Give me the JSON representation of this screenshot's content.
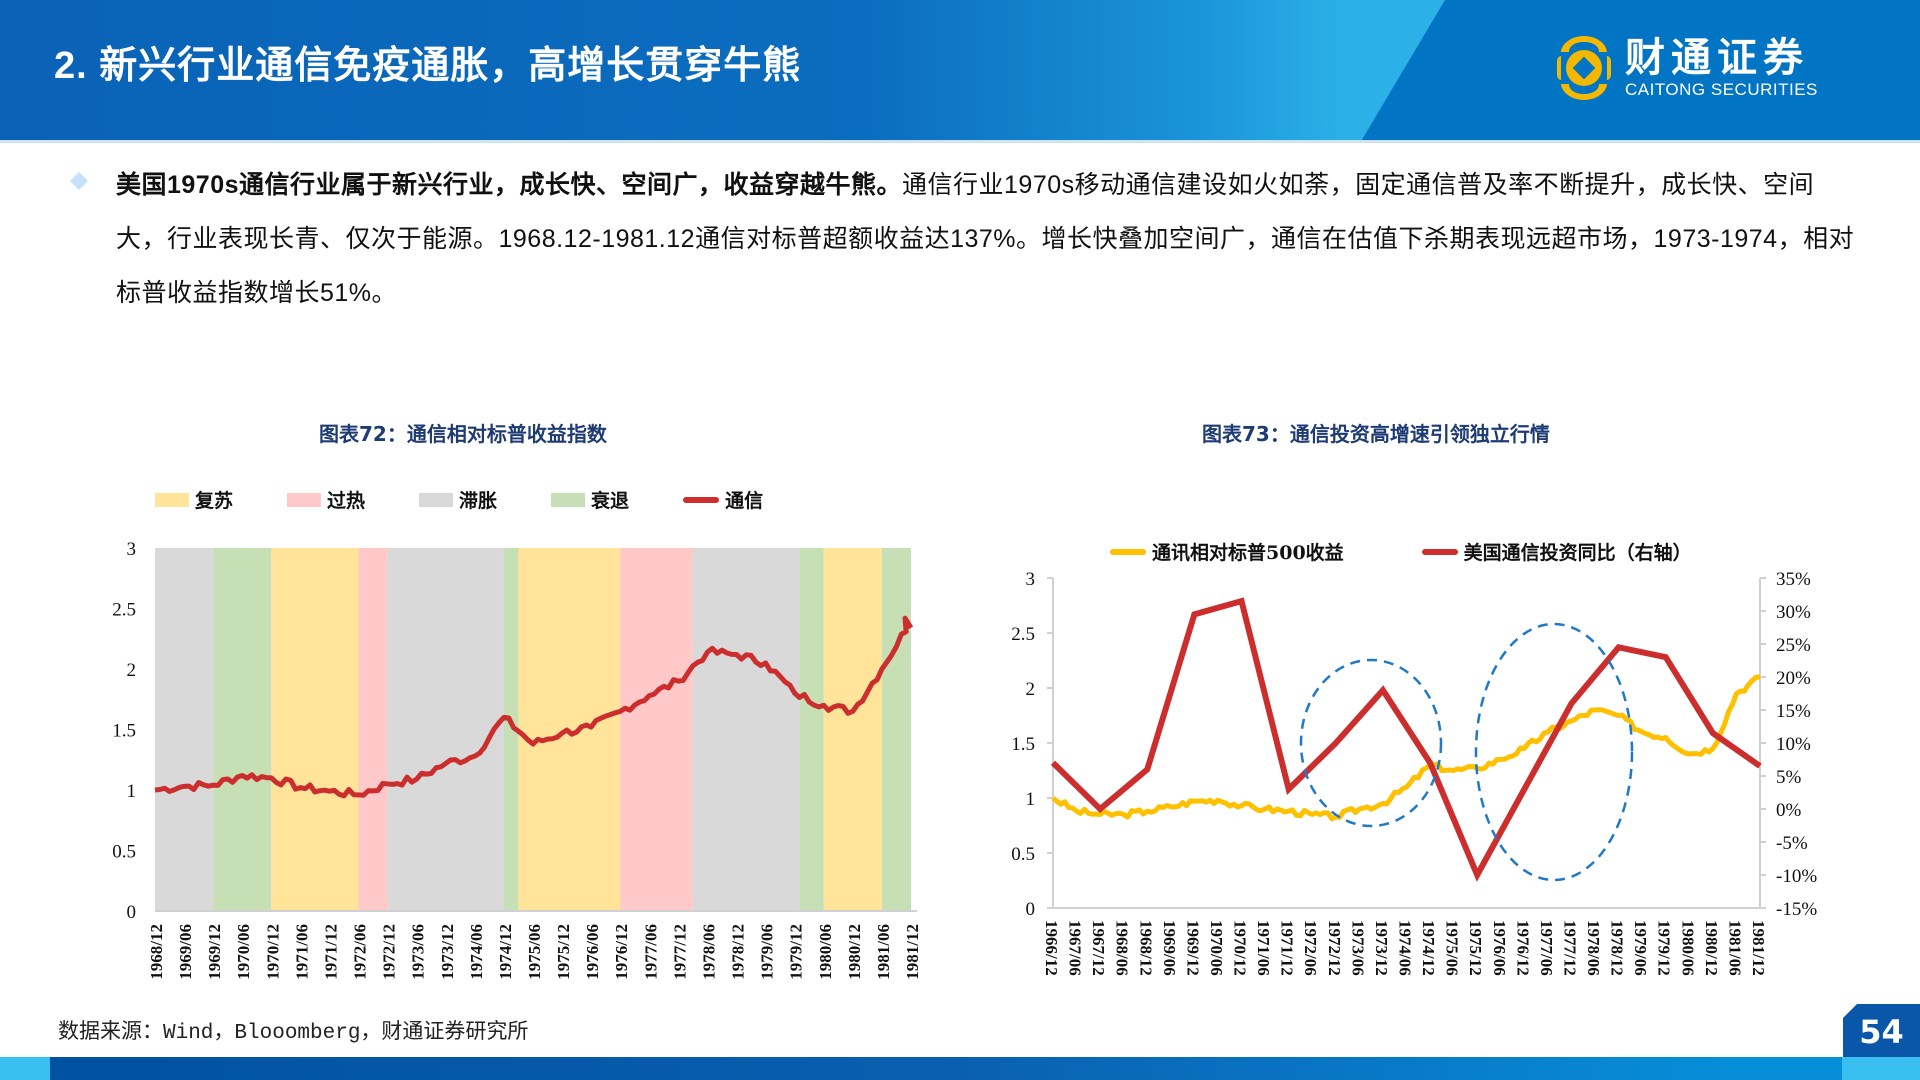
{
  "header": {
    "title": "2. 新兴行业通信免疫通胀，高增长贯穿牛熊",
    "logo_cn": "财通证券",
    "logo_en": "CAITONG SECURITIES"
  },
  "bullet": {
    "bold_text": "美国1970s通信行业属于新兴行业，成长快、空间广，收益穿越牛熊。",
    "body_text": "通信行业1970s移动通信建设如火如荼，固定通信普及率不断提升，成长快、空间大，行业表现长青、仅次于能源。1968.12-1981.12通信对标普超额收益达137%。增长快叠加空间广，通信在估值下杀期表现远超市场，1973-1974，相对标普收益指数增长51%。"
  },
  "chart72": {
    "title": "图表72：通信相对标普收益指数",
    "legend": [
      "复苏",
      "过热",
      "滞胀",
      "衰退",
      "通信"
    ]
  },
  "chart73": {
    "title": "图表73：通信投资高增速引领独立行情",
    "legend": [
      "通讯相对标普500收益",
      "美国通信投资同比（右轴）"
    ]
  },
  "source": "数据来源：Wind，Blooomberg，财通证券研究所",
  "page_number": "54",
  "colors": {
    "header_blue": "#0a62b6",
    "recovery": "#ffe499",
    "overheat": "#ffc9c9",
    "stagflation": "#d9d9d9",
    "recession": "#c6dfb4",
    "telecom_red": "#cc2e2e",
    "yellow_series": "#ffc000",
    "ellipse_blue": "#1f78c8"
  },
  "chart_data": [
    {
      "type": "line",
      "title": "图表72：通信相对标普收益指数",
      "xlabel": "",
      "ylabel": "",
      "ylim": [
        0,
        3
      ],
      "yticks": [
        0,
        0.5,
        1,
        1.5,
        2,
        2.5,
        3
      ],
      "categories": [
        "1968/12",
        "1969/06",
        "1969/12",
        "1970/06",
        "1970/12",
        "1971/06",
        "1971/12",
        "1972/06",
        "1972/12",
        "1973/06",
        "1973/12",
        "1974/06",
        "1974/12",
        "1975/06",
        "1975/12",
        "1976/06",
        "1976/12",
        "1977/06",
        "1977/12",
        "1978/06",
        "1978/12",
        "1979/06",
        "1979/12",
        "1980/06",
        "1980/12",
        "1981/06",
        "1981/12"
      ],
      "legend_position": "top",
      "grid": false,
      "series": [
        {
          "name": "通信",
          "color": "#cc2e2e",
          "values": [
            1.0,
            1.03,
            1.04,
            1.12,
            1.1,
            1.02,
            0.99,
            0.96,
            1.05,
            1.09,
            1.22,
            1.28,
            1.6,
            1.38,
            1.47,
            1.52,
            1.65,
            1.78,
            1.9,
            2.14,
            2.12,
            2.05,
            1.8,
            1.7,
            1.65,
            2.0,
            2.4
          ]
        }
      ],
      "background_bands": [
        {
          "phase": "滞胀",
          "start": "1968/12",
          "end": "1969/12"
        },
        {
          "phase": "衰退",
          "start": "1969/12",
          "end": "1970/12"
        },
        {
          "phase": "复苏",
          "start": "1970/12",
          "end": "1972/06"
        },
        {
          "phase": "过热",
          "start": "1972/06",
          "end": "1972/12"
        },
        {
          "phase": "滞胀",
          "start": "1972/12",
          "end": "1974/12"
        },
        {
          "phase": "衰退",
          "start": "1974/12",
          "end": "1975/03"
        },
        {
          "phase": "复苏",
          "start": "1975/03",
          "end": "1976/12"
        },
        {
          "phase": "过热",
          "start": "1976/12",
          "end": "1978/03"
        },
        {
          "phase": "滞胀",
          "start": "1978/03",
          "end": "1980/01"
        },
        {
          "phase": "衰退",
          "start": "1980/01",
          "end": "1980/06"
        },
        {
          "phase": "复苏",
          "start": "1980/06",
          "end": "1981/06"
        },
        {
          "phase": "衰退",
          "start": "1981/06",
          "end": "1981/12"
        }
      ]
    },
    {
      "type": "line",
      "title": "图表73：通信投资高增速引领独立行情",
      "xlabel": "",
      "ylabel": "",
      "ylim": [
        0,
        3
      ],
      "yticks": [
        0,
        0.5,
        1,
        1.5,
        2,
        2.5,
        3
      ],
      "y2lim": [
        -0.15,
        0.35
      ],
      "y2ticks": [
        "-15%",
        "-10%",
        "-5%",
        "0%",
        "5%",
        "10%",
        "15%",
        "20%",
        "25%",
        "30%",
        "35%"
      ],
      "categories": [
        "1966/12",
        "1967/06",
        "1967/12",
        "1968/06",
        "1968/12",
        "1969/06",
        "1969/12",
        "1970/06",
        "1970/12",
        "1971/06",
        "1971/12",
        "1972/06",
        "1972/12",
        "1973/06",
        "1973/12",
        "1974/06",
        "1974/12",
        "1975/06",
        "1975/12",
        "1976/06",
        "1976/12",
        "1977/06",
        "1977/12",
        "1978/06",
        "1978/12",
        "1979/06",
        "1979/12",
        "1980/06",
        "1980/12",
        "1981/06",
        "1981/12"
      ],
      "legend_position": "top",
      "grid": false,
      "series": [
        {
          "name": "通讯相对标普500收益",
          "axis": "left",
          "color": "#ffc000",
          "values": [
            1.0,
            0.88,
            0.85,
            0.85,
            0.88,
            0.92,
            0.97,
            0.98,
            0.93,
            0.9,
            0.88,
            0.85,
            0.83,
            0.9,
            0.95,
            1.1,
            1.3,
            1.25,
            1.27,
            1.35,
            1.45,
            1.6,
            1.7,
            1.8,
            1.75,
            1.6,
            1.55,
            1.4,
            1.45,
            1.95,
            2.1
          ]
        },
        {
          "name": "美国通信投资同比（右轴）",
          "axis": "right",
          "color": "#cc2e2e",
          "x": [
            "1966/12",
            "1967/12",
            "1968/12",
            "1969/12",
            "1970/12",
            "1971/12",
            "1972/12",
            "1973/12",
            "1974/12",
            "1975/12",
            "1976/12",
            "1977/12",
            "1978/12",
            "1979/12",
            "1980/12",
            "1981/12"
          ],
          "values": [
            0.07,
            0.0,
            0.06,
            0.295,
            0.315,
            0.03,
            0.1,
            0.18,
            0.07,
            -0.1,
            0.03,
            0.16,
            0.245,
            0.23,
            0.115,
            0.065
          ]
        }
      ],
      "annotations": [
        {
          "type": "dashed-ellipse",
          "around": "1972/06-1974/12"
        },
        {
          "type": "dashed-ellipse",
          "around": "1975/06-1978/06"
        }
      ]
    }
  ]
}
